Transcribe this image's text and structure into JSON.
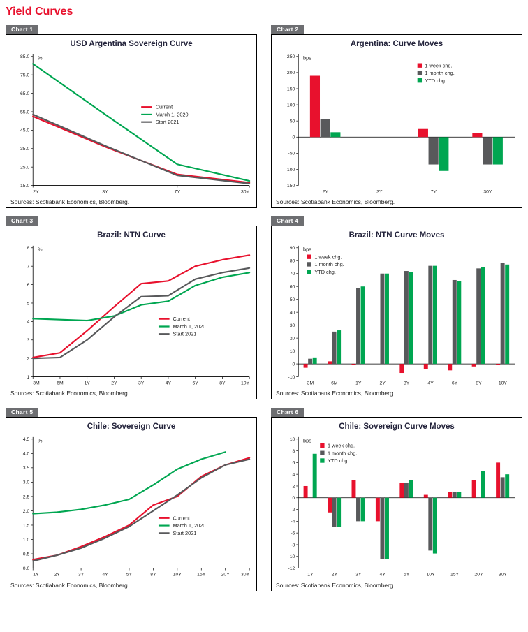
{
  "page": {
    "title": "Yield Curves"
  },
  "colors": {
    "red": "#e8112d",
    "green": "#00a651",
    "gray": "#58595b",
    "tag_bg": "#6d6e71",
    "title_text": "#23233b"
  },
  "charts": [
    {
      "tag": "Chart 1",
      "title": "USD Argentina Sovereign Curve",
      "sources": "Sources: Scotiabank Economics, Bloomberg.",
      "chart_data": {
        "type": "line",
        "unit": "%",
        "categories": [
          "2Y",
          "3Y",
          "7Y",
          "30Y"
        ],
        "ylim": [
          15,
          85
        ],
        "ytick": 10,
        "tick_decimals": 1,
        "legend": {
          "x": 0.5,
          "y": 0.36
        },
        "series": [
          {
            "name": "Current",
            "color": "red",
            "values": [
              52.5,
              36,
              21,
              16.5
            ]
          },
          {
            "name": "March 1, 2020",
            "color": "green",
            "values": [
              81,
              53.5,
              26.5,
              17.5
            ]
          },
          {
            "name": "Start 2021",
            "color": "gray",
            "values": [
              53.5,
              36.5,
              20.5,
              16
            ]
          }
        ]
      }
    },
    {
      "tag": "Chart 2",
      "title": "Argentina: Curve Moves",
      "sources": "Sources: Scotiabank Economics, Bloomberg.",
      "chart_data": {
        "type": "bar",
        "unit": "bps",
        "categories": [
          "2Y",
          "3Y",
          "7Y",
          "30Y"
        ],
        "ylim": [
          -150,
          250
        ],
        "ytick": 50,
        "tick_decimals": 0,
        "legend": {
          "x": 0.55,
          "y": 0.05
        },
        "series": [
          {
            "name": "1 week chg.",
            "color": "red",
            "values": [
              190,
              0,
              25,
              12
            ]
          },
          {
            "name": "1 month chg.",
            "color": "gray",
            "values": [
              55,
              0,
              -85,
              -85
            ]
          },
          {
            "name": "YTD chg.",
            "color": "green",
            "values": [
              15,
              0,
              -105,
              -85
            ]
          }
        ]
      }
    },
    {
      "tag": "Chart 3",
      "title": "Brazil: NTN Curve",
      "sources": "Sources: Scotiabank Economics, Bloomberg.",
      "chart_data": {
        "type": "line",
        "unit": "%",
        "categories": [
          "3M",
          "6M",
          "1Y",
          "2Y",
          "3Y",
          "4Y",
          "6Y",
          "8Y",
          "10Y"
        ],
        "ylim": [
          1,
          8
        ],
        "ytick": 1,
        "tick_decimals": 0,
        "legend": {
          "x": 0.58,
          "y": 0.52
        },
        "series": [
          {
            "name": "Current",
            "color": "red",
            "values": [
              2.05,
              2.3,
              3.5,
              4.8,
              6.05,
              6.2,
              7.0,
              7.35,
              7.6
            ]
          },
          {
            "name": "March 1, 2020",
            "color": "green",
            "values": [
              4.15,
              4.1,
              4.05,
              4.3,
              4.9,
              5.1,
              5.95,
              6.4,
              6.65
            ]
          },
          {
            "name": "Start 2021",
            "color": "gray",
            "values": [
              2.0,
              2.05,
              3.0,
              4.25,
              5.35,
              5.4,
              6.3,
              6.65,
              6.9
            ]
          }
        ]
      }
    },
    {
      "tag": "Chart 4",
      "title": "Brazil: NTN Curve Moves",
      "sources": "Sources: Scotiabank Economics, Bloomberg.",
      "chart_data": {
        "type": "bar",
        "unit": "bps",
        "categories": [
          "3M",
          "6M",
          "1Y",
          "2Y",
          "3Y",
          "4Y",
          "6Y",
          "8Y",
          "10Y"
        ],
        "ylim": [
          -10,
          90
        ],
        "ytick": 10,
        "tick_decimals": 0,
        "legend": {
          "x": 0.04,
          "y": 0.05
        },
        "series": [
          {
            "name": "1 week chg.",
            "color": "red",
            "values": [
              -3,
              2,
              -1,
              0,
              -7,
              -4,
              -5,
              -2,
              -1
            ]
          },
          {
            "name": "1 month chg.",
            "color": "gray",
            "values": [
              4,
              25,
              59,
              70,
              72,
              76,
              65,
              74,
              78
            ]
          },
          {
            "name": "YTD chg.",
            "color": "green",
            "values": [
              5,
              26,
              60,
              70,
              71,
              76,
              64,
              75,
              77
            ]
          }
        ]
      }
    },
    {
      "tag": "Chart 5",
      "title": "Chile: Sovereign Curve",
      "sources": "Sources: Scotiabank Economics, Bloomberg.",
      "chart_data": {
        "type": "line",
        "unit": "%",
        "categories": [
          "1Y",
          "2Y",
          "3Y",
          "4Y",
          "5Y",
          "8Y",
          "10Y",
          "15Y",
          "20Y",
          "30Y"
        ],
        "ylim": [
          0,
          4.5
        ],
        "ytick": 0.5,
        "tick_decimals": 1,
        "legend": {
          "x": 0.58,
          "y": 0.58
        },
        "series": [
          {
            "name": "Current",
            "color": "red",
            "values": [
              0.3,
              0.45,
              0.75,
              1.1,
              1.5,
              2.2,
              2.5,
              3.2,
              3.6,
              3.85
            ]
          },
          {
            "name": "March 1, 2020",
            "color": "green",
            "values": [
              1.9,
              1.95,
              2.05,
              2.2,
              2.4,
              2.9,
              3.45,
              3.8,
              4.05,
              null
            ]
          },
          {
            "name": "Start 2021",
            "color": "gray",
            "values": [
              0.25,
              0.45,
              0.7,
              1.05,
              1.45,
              2.0,
              2.55,
              3.15,
              3.6,
              3.8
            ]
          }
        ]
      }
    },
    {
      "tag": "Chart 6",
      "title": "Chile: Sovereign Curve Moves",
      "sources": "Sources: Scotiabank Economics, Bloomberg.",
      "chart_data": {
        "type": "bar",
        "unit": "bps",
        "categories": [
          "1Y",
          "2Y",
          "3Y",
          "4Y",
          "5Y",
          "10Y",
          "15Y",
          "20Y",
          "30Y"
        ],
        "ylim": [
          -12,
          10
        ],
        "ytick": 2,
        "tick_decimals": 0,
        "legend": {
          "x": 0.1,
          "y": 0.03
        },
        "series": [
          {
            "name": "1 week chg.",
            "color": "red",
            "values": [
              2,
              -2.5,
              3,
              -4,
              2.5,
              0.5,
              1,
              3,
              6
            ]
          },
          {
            "name": "1 month chg.",
            "color": "gray",
            "values": [
              0,
              -5,
              -4,
              -10.5,
              2.5,
              -9,
              1,
              0,
              3.5
            ]
          },
          {
            "name": "YTD chg.",
            "color": "green",
            "values": [
              7.5,
              -5,
              -4,
              -10.5,
              3,
              -9.5,
              1,
              4.5,
              4
            ]
          }
        ]
      }
    }
  ]
}
